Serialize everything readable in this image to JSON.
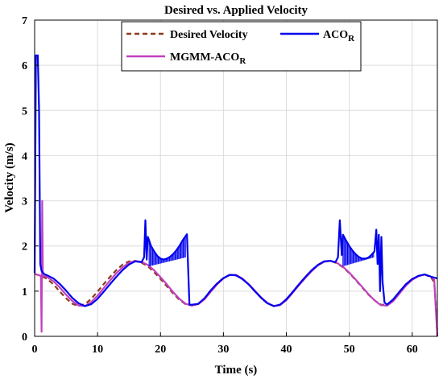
{
  "chart_data": {
    "type": "line",
    "title": "Desired vs. Applied Velocity",
    "xlabel": "Time (s)",
    "ylabel": "Velocity (m/s)",
    "xlim": [
      0,
      64
    ],
    "ylim": [
      0,
      7
    ],
    "xticks": [
      0,
      10,
      20,
      30,
      40,
      50,
      60
    ],
    "yticks": [
      0,
      1,
      2,
      3,
      4,
      5,
      6,
      7
    ],
    "grid": true,
    "legend_position": "top-center",
    "legend": [
      {
        "label": "Desired Velocity",
        "base": "Desired Velocity",
        "sub": "",
        "color": "#8b3a1a",
        "style": "dashed"
      },
      {
        "label": "ACOR",
        "base": "ACO",
        "sub": "R",
        "color": "#0000ee",
        "style": "solid"
      },
      {
        "label": "MGMM-ACOR",
        "base": "MGMM-ACO",
        "sub": "R",
        "color": "#c040c0",
        "style": "solid"
      }
    ],
    "series": [
      {
        "name": "Desired Velocity",
        "color": "#8b3a1a",
        "style": "dashed",
        "x": [
          0,
          1,
          2,
          3,
          4,
          5,
          6,
          7,
          8,
          9,
          10,
          11,
          12,
          13,
          14,
          15,
          16,
          17,
          18,
          19,
          20,
          21,
          22,
          23,
          24,
          25,
          26,
          27,
          28,
          29,
          30,
          31,
          32,
          33,
          34,
          35,
          36,
          37,
          38,
          39,
          40,
          41,
          42,
          43,
          44,
          45,
          46,
          47,
          48,
          49,
          50,
          51,
          52,
          53,
          54,
          55,
          56,
          57,
          58,
          59,
          60,
          61,
          62,
          63,
          63.5,
          63.8,
          64
        ],
        "y": [
          1.38,
          1.34,
          1.27,
          1.15,
          0.99,
          0.84,
          0.72,
          0.67,
          0.71,
          0.83,
          0.99,
          1.16,
          1.32,
          1.47,
          1.59,
          1.66,
          1.67,
          1.63,
          1.55,
          1.42,
          1.27,
          1.11,
          0.95,
          0.81,
          0.71,
          0.68,
          0.72,
          0.84,
          1.02,
          1.17,
          1.29,
          1.36,
          1.35,
          1.27,
          1.15,
          1.0,
          0.85,
          0.73,
          0.67,
          0.7,
          0.82,
          0.98,
          1.15,
          1.31,
          1.46,
          1.58,
          1.66,
          1.67,
          1.62,
          1.53,
          1.4,
          1.25,
          1.09,
          0.93,
          0.8,
          0.7,
          0.7,
          0.82,
          0.99,
          1.15,
          1.27,
          1.34,
          1.37,
          1.3,
          1.2,
          0.6,
          0.0
        ]
      },
      {
        "name": "ACOR",
        "color": "#0000ee",
        "style": "solid",
        "x": [
          0,
          0.2,
          0.3,
          0.5,
          0.7,
          0.8,
          0.9,
          1.1,
          1.5,
          2,
          3,
          4,
          5,
          6,
          7,
          8,
          9,
          10,
          11,
          12,
          13,
          14,
          15,
          16,
          17,
          17.4,
          17.6,
          17.8,
          18.0,
          18.2,
          18.5,
          19,
          19.5,
          20,
          20.5,
          21,
          21.5,
          22,
          22.5,
          23,
          23.5,
          23.9,
          24.2,
          24.4,
          24.6,
          24.8,
          25,
          26,
          27,
          28,
          29,
          30,
          31,
          32,
          33,
          34,
          35,
          36,
          37,
          38,
          39,
          40,
          41,
          42,
          43,
          44,
          45,
          46,
          47,
          47.8,
          48.2,
          48.5,
          48.8,
          49,
          49.5,
          50,
          50.5,
          51,
          51.5,
          52,
          52.5,
          53,
          53.5,
          54,
          54.3,
          54.5,
          54.7,
          54.9,
          55.1,
          55.3,
          55.6,
          56,
          57,
          58,
          59,
          60,
          61,
          62,
          63,
          63.5,
          64
        ],
        "y": [
          1.4,
          6.22,
          6.22,
          6.22,
          5.0,
          3.2,
          1.6,
          1.45,
          1.38,
          1.35,
          1.28,
          1.16,
          1.01,
          0.85,
          0.73,
          0.67,
          0.71,
          0.83,
          0.99,
          1.16,
          1.32,
          1.47,
          1.59,
          1.66,
          1.64,
          1.75,
          2.57,
          1.7,
          2.2,
          2.12,
          2.0,
          1.88,
          1.78,
          1.72,
          1.7,
          1.72,
          1.76,
          1.82,
          1.9,
          2.0,
          2.12,
          2.2,
          2.26,
          1.5,
          0.7,
          0.7,
          0.7,
          0.72,
          0.84,
          1.02,
          1.17,
          1.29,
          1.36,
          1.35,
          1.27,
          1.15,
          1.0,
          0.85,
          0.73,
          0.67,
          0.7,
          0.82,
          0.98,
          1.15,
          1.31,
          1.46,
          1.58,
          1.66,
          1.67,
          1.64,
          1.75,
          2.57,
          1.8,
          2.25,
          2.12,
          2.0,
          1.9,
          1.82,
          1.76,
          1.72,
          1.72,
          1.74,
          1.8,
          1.88,
          2.36,
          1.6,
          2.25,
          1.0,
          2.2,
          1.2,
          0.75,
          0.7,
          0.82,
          0.99,
          1.15,
          1.27,
          1.34,
          1.37,
          1.32,
          1.3,
          1.28
        ]
      },
      {
        "name": "MGMM-ACOR",
        "color": "#c040c0",
        "style": "solid",
        "x": [
          0,
          0.5,
          1.0,
          1.1,
          1.2,
          1.3,
          1.4,
          1.6,
          2,
          3,
          4,
          5,
          6,
          7,
          8,
          9,
          10,
          11,
          12,
          13,
          14,
          15,
          16,
          17,
          18,
          19,
          20,
          21,
          22,
          23,
          24,
          25,
          26,
          27,
          28,
          29,
          30,
          31,
          32,
          33,
          34,
          35,
          36,
          37,
          38,
          39,
          40,
          41,
          42,
          43,
          44,
          45,
          46,
          47,
          48,
          49,
          50,
          51,
          52,
          53,
          54,
          55,
          56,
          57,
          58,
          59,
          60,
          61,
          62,
          63,
          63.5,
          63.8,
          64
        ],
        "y": [
          1.38,
          1.36,
          1.34,
          0.1,
          3.0,
          1.35,
          1.34,
          1.33,
          1.31,
          1.22,
          1.08,
          0.92,
          0.78,
          0.68,
          0.67,
          0.76,
          0.9,
          1.07,
          1.24,
          1.4,
          1.53,
          1.63,
          1.67,
          1.65,
          1.58,
          1.46,
          1.31,
          1.15,
          0.98,
          0.83,
          0.72,
          0.68,
          0.71,
          0.82,
          0.99,
          1.15,
          1.28,
          1.36,
          1.36,
          1.28,
          1.16,
          1.01,
          0.86,
          0.74,
          0.67,
          0.69,
          0.8,
          0.96,
          1.13,
          1.29,
          1.44,
          1.57,
          1.65,
          1.67,
          1.63,
          1.54,
          1.41,
          1.26,
          1.1,
          0.94,
          0.8,
          0.69,
          0.68,
          0.78,
          0.95,
          1.12,
          1.25,
          1.33,
          1.37,
          1.32,
          1.25,
          0.5,
          0.0
        ]
      }
    ]
  }
}
